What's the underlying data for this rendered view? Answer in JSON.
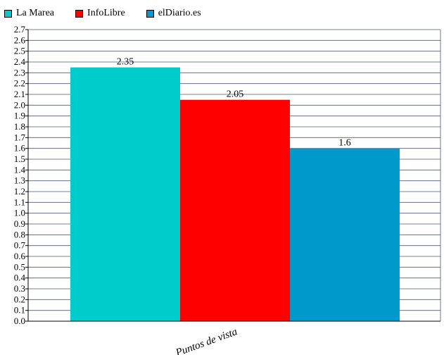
{
  "chart_data": {
    "type": "bar",
    "categories": [
      "Puntos de vista"
    ],
    "series": [
      {
        "name": "La Marea",
        "values": [
          2.35
        ],
        "color": "#00CCCC"
      },
      {
        "name": "InfoLibre",
        "values": [
          2.05
        ],
        "color": "#FF0000"
      },
      {
        "name": "elDiario.es",
        "values": [
          1.6
        ],
        "color": "#0099CC"
      }
    ],
    "data_labels": [
      "2.35",
      "2.05",
      "1.6"
    ],
    "yticks": [
      "0.0",
      "0.1",
      "0.2",
      "0.3",
      "0.4",
      "0.5",
      "0.6",
      "0.7",
      "0.8",
      "0.9",
      "1.0",
      "1.1",
      "1.2",
      "1.3",
      "1.4",
      "1.5",
      "1.6",
      "1.7",
      "1.8",
      "1.9",
      "2.0",
      "2.1",
      "2.2",
      "2.3",
      "2.4",
      "2.5",
      "2.6",
      "2.7"
    ],
    "ylim": [
      0,
      2.7
    ],
    "grid": true,
    "legend_position": "top-left",
    "title": "",
    "xlabel": "",
    "ylabel": ""
  }
}
